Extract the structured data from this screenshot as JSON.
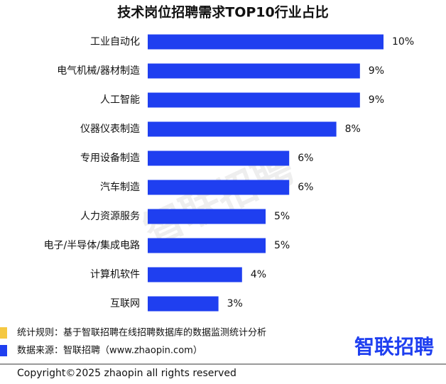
{
  "chart_data": {
    "type": "bar",
    "orientation": "horizontal",
    "title": "技术岗位招聘需求TOP10行业占比",
    "categories": [
      "工业自动化",
      "电气机械/器材制造",
      "人工智能",
      "仪器仪表制造",
      "专用设备制造",
      "汽车制造",
      "人力资源服务",
      "电子/半导体/集成电路",
      "计算机软件",
      "互联网"
    ],
    "values": [
      10,
      9,
      9,
      8,
      6,
      6,
      5,
      5,
      4,
      3
    ],
    "value_labels": [
      "10%",
      "9%",
      "9%",
      "8%",
      "6%",
      "6%",
      "5%",
      "5%",
      "4%",
      "3%"
    ],
    "color": "#1f3ff0",
    "watermark": "智联招聘",
    "notes": [
      {
        "text": "统计规则：基于智联招聘在线招聘数据库的数据监测统计分析",
        "color": "#f5c842"
      },
      {
        "text": "数据来源：智联招聘（www.zhaopin.com）",
        "color": "#1f3ff0"
      }
    ],
    "logo": "智联招聘",
    "copyright": "Copyright©2025 zhaopin all rights reserved"
  }
}
